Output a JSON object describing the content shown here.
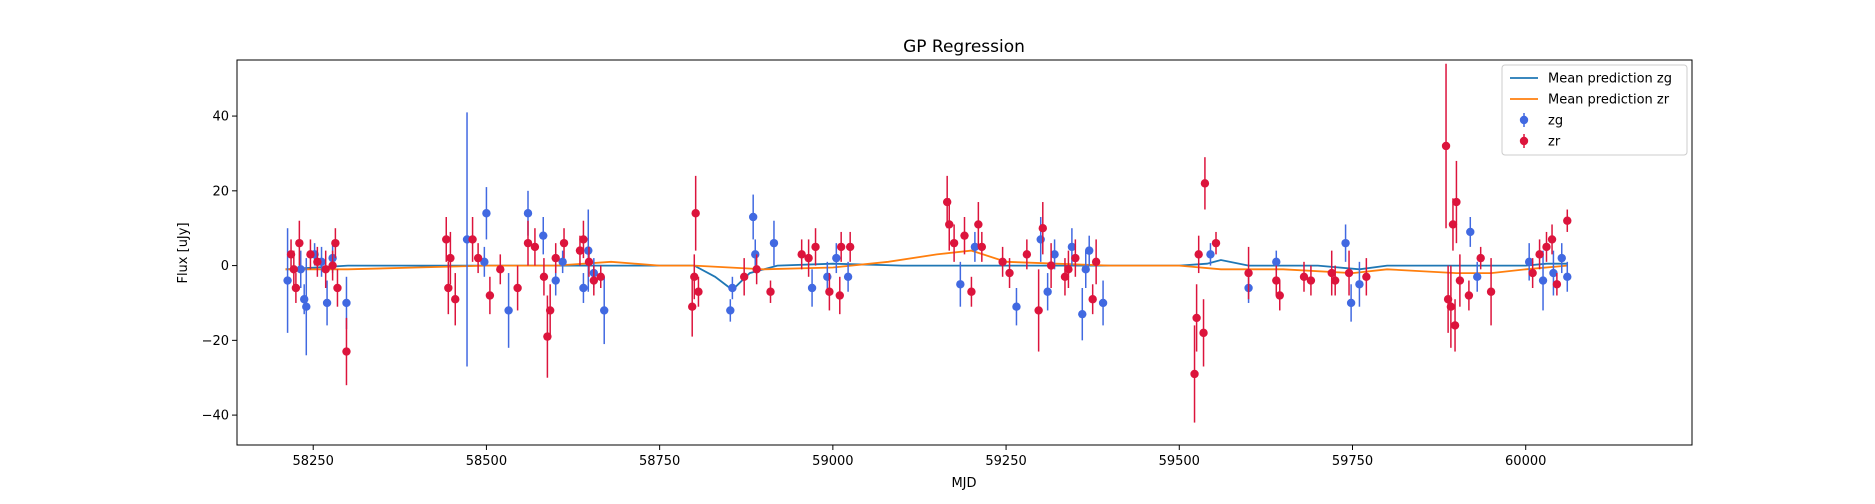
{
  "chart_data": {
    "type": "scatter",
    "title": "GP Regression",
    "xlabel": "MJD",
    "ylabel": "Flux [uJy]",
    "xlim": [
      58140,
      60240
    ],
    "ylim": [
      -48,
      55
    ],
    "xticks": [
      58250,
      58500,
      58750,
      59000,
      59250,
      59500,
      59750,
      60000
    ],
    "yticks": [
      -40,
      -20,
      0,
      20,
      40
    ],
    "grid": false,
    "legend_position": "top-right",
    "colors": {
      "zg": "#4169e1",
      "zr": "#dc143c",
      "mean_zg": "#1f77b4",
      "mean_zr": "#ff7f0e"
    },
    "series": [
      {
        "name": "Mean prediction zg",
        "kind": "line",
        "points": [
          [
            58210,
            -1
          ],
          [
            58300,
            0
          ],
          [
            58400,
            0
          ],
          [
            58500,
            0
          ],
          [
            58600,
            0
          ],
          [
            58700,
            0
          ],
          [
            58800,
            0
          ],
          [
            58830,
            -3
          ],
          [
            58855,
            -6.5
          ],
          [
            58880,
            -2
          ],
          [
            58920,
            0
          ],
          [
            59000,
            0.5
          ],
          [
            59100,
            0
          ],
          [
            59250,
            0
          ],
          [
            59400,
            0
          ],
          [
            59500,
            0
          ],
          [
            59540,
            0.5
          ],
          [
            59560,
            1.5
          ],
          [
            59600,
            0
          ],
          [
            59700,
            0
          ],
          [
            59760,
            -1
          ],
          [
            59800,
            0
          ],
          [
            59900,
            0
          ],
          [
            60000,
            0
          ],
          [
            60030,
            0.5
          ],
          [
            60060,
            0.5
          ]
        ]
      },
      {
        "name": "Mean prediction zr",
        "kind": "line",
        "points": [
          [
            58210,
            -1
          ],
          [
            58300,
            -1
          ],
          [
            58400,
            -0.5
          ],
          [
            58500,
            0
          ],
          [
            58600,
            0
          ],
          [
            58680,
            1
          ],
          [
            58750,
            0
          ],
          [
            58800,
            0
          ],
          [
            58900,
            -1
          ],
          [
            59000,
            -0.5
          ],
          [
            59080,
            1
          ],
          [
            59150,
            3
          ],
          [
            59200,
            4
          ],
          [
            59250,
            1
          ],
          [
            59400,
            0
          ],
          [
            59500,
            0
          ],
          [
            59560,
            -1
          ],
          [
            59650,
            -1
          ],
          [
            59750,
            -2
          ],
          [
            59800,
            -1
          ],
          [
            59900,
            -2
          ],
          [
            59950,
            -2
          ],
          [
            60000,
            -1
          ],
          [
            60060,
            0
          ]
        ]
      },
      {
        "name": "zg",
        "kind": "errorbar",
        "points": [
          [
            58213,
            -4,
            14
          ],
          [
            58232,
            -1,
            5
          ],
          [
            58237,
            -9,
            4
          ],
          [
            58240,
            -11,
            13
          ],
          [
            58252,
            3,
            3
          ],
          [
            58262,
            1,
            4
          ],
          [
            58270,
            -10,
            6
          ],
          [
            58278,
            2,
            4
          ],
          [
            58298,
            -10,
            7
          ],
          [
            58472,
            7,
            34
          ],
          [
            58497,
            1,
            4
          ],
          [
            58500,
            14,
            7
          ],
          [
            58532,
            -12,
            10
          ],
          [
            58560,
            14,
            6
          ],
          [
            58582,
            8,
            5
          ],
          [
            58600,
            -4,
            4
          ],
          [
            58610,
            1,
            3
          ],
          [
            58640,
            -6,
            4
          ],
          [
            58647,
            4,
            11
          ],
          [
            58655,
            -2,
            4
          ],
          [
            58670,
            -12,
            9
          ],
          [
            58852,
            -12,
            3
          ],
          [
            58855,
            -6,
            3
          ],
          [
            58885,
            13,
            6
          ],
          [
            58888,
            3,
            4
          ],
          [
            58915,
            6,
            6
          ],
          [
            58970,
            -6,
            5
          ],
          [
            58992,
            -3,
            4
          ],
          [
            59005,
            2,
            4
          ],
          [
            59022,
            -3,
            4
          ],
          [
            59184,
            -5,
            6
          ],
          [
            59205,
            5,
            4
          ],
          [
            59265,
            -11,
            5
          ],
          [
            59300,
            7,
            6
          ],
          [
            59310,
            -7,
            5
          ],
          [
            59320,
            3,
            4
          ],
          [
            59345,
            5,
            5
          ],
          [
            59360,
            -13,
            7
          ],
          [
            59365,
            -1,
            5
          ],
          [
            59370,
            4,
            4
          ],
          [
            59390,
            -10,
            6
          ],
          [
            59545,
            3,
            3
          ],
          [
            59600,
            -6,
            4
          ],
          [
            59640,
            1,
            3
          ],
          [
            59740,
            6,
            5
          ],
          [
            59748,
            -10,
            5
          ],
          [
            59760,
            -5,
            6
          ],
          [
            59920,
            9,
            4
          ],
          [
            59930,
            -3,
            4
          ],
          [
            60005,
            1,
            5
          ],
          [
            60025,
            -4,
            8
          ],
          [
            60040,
            -2,
            6
          ],
          [
            60052,
            2,
            4
          ],
          [
            60060,
            -3,
            4
          ]
        ]
      },
      {
        "name": "zr",
        "kind": "errorbar",
        "points": [
          [
            58218,
            3,
            4
          ],
          [
            58222,
            -1,
            5
          ],
          [
            58225,
            -6,
            4
          ],
          [
            58230,
            6,
            6
          ],
          [
            58246,
            3,
            4
          ],
          [
            58256,
            1,
            4
          ],
          [
            58268,
            -1,
            5
          ],
          [
            58278,
            0,
            4
          ],
          [
            58282,
            6,
            4
          ],
          [
            58285,
            -6,
            5
          ],
          [
            58298,
            -23,
            9
          ],
          [
            58442,
            7,
            6
          ],
          [
            58445,
            -6,
            7
          ],
          [
            58448,
            2,
            7
          ],
          [
            58455,
            -9,
            7
          ],
          [
            58480,
            7,
            6
          ],
          [
            58488,
            2,
            4
          ],
          [
            58505,
            -8,
            5
          ],
          [
            58520,
            -1,
            4
          ],
          [
            58545,
            -6,
            6
          ],
          [
            58560,
            6,
            6
          ],
          [
            58570,
            5,
            5
          ],
          [
            58583,
            -3,
            5
          ],
          [
            58588,
            -19,
            11
          ],
          [
            58592,
            -12,
            7
          ],
          [
            58600,
            2,
            4
          ],
          [
            58612,
            6,
            4
          ],
          [
            58635,
            4,
            4
          ],
          [
            58640,
            7,
            5
          ],
          [
            58648,
            1,
            4
          ],
          [
            58655,
            -4,
            4
          ],
          [
            58665,
            -3,
            3
          ],
          [
            58797,
            -11,
            8
          ],
          [
            58800,
            -3,
            6
          ],
          [
            58802,
            14,
            10
          ],
          [
            58806,
            -7,
            4
          ],
          [
            58872,
            -3,
            5
          ],
          [
            58890,
            -1,
            4
          ],
          [
            58910,
            -7,
            3
          ],
          [
            58955,
            3,
            4
          ],
          [
            58965,
            2,
            5
          ],
          [
            58975,
            5,
            5
          ],
          [
            58995,
            -7,
            5
          ],
          [
            59010,
            -8,
            5
          ],
          [
            59012,
            5,
            4
          ],
          [
            59025,
            5,
            4
          ],
          [
            59165,
            17,
            7
          ],
          [
            59168,
            11,
            7
          ],
          [
            59175,
            6,
            5
          ],
          [
            59190,
            8,
            5
          ],
          [
            59200,
            -7,
            4
          ],
          [
            59210,
            11,
            6
          ],
          [
            59215,
            5,
            4
          ],
          [
            59245,
            1,
            4
          ],
          [
            59255,
            -2,
            4
          ],
          [
            59280,
            3,
            4
          ],
          [
            59297,
            -12,
            11
          ],
          [
            59303,
            10,
            7
          ],
          [
            59315,
            0,
            6
          ],
          [
            59335,
            -3,
            5
          ],
          [
            59340,
            -1,
            5
          ],
          [
            59350,
            2,
            5
          ],
          [
            59375,
            -9,
            4
          ],
          [
            59380,
            1,
            6
          ],
          [
            59522,
            -29,
            13
          ],
          [
            59525,
            -14,
            9
          ],
          [
            59528,
            3,
            5
          ],
          [
            59535,
            -18,
            9
          ],
          [
            59537,
            22,
            7
          ],
          [
            59553,
            6,
            3
          ],
          [
            59600,
            -2,
            7
          ],
          [
            59640,
            -4,
            4
          ],
          [
            59645,
            -8,
            4
          ],
          [
            59680,
            -3,
            4
          ],
          [
            59690,
            -4,
            4
          ],
          [
            59720,
            -2,
            6
          ],
          [
            59725,
            -4,
            4
          ],
          [
            59745,
            -2,
            6
          ],
          [
            59770,
            -3,
            5
          ],
          [
            59885,
            32,
            22
          ],
          [
            59888,
            -9,
            9
          ],
          [
            59892,
            -11,
            11
          ],
          [
            59895,
            11,
            7
          ],
          [
            59898,
            -16,
            7
          ],
          [
            59900,
            17,
            11
          ],
          [
            59905,
            -4,
            7
          ],
          [
            59918,
            -8,
            4
          ],
          [
            59935,
            2,
            3
          ],
          [
            59950,
            -7,
            9
          ],
          [
            60010,
            -2,
            4
          ],
          [
            60020,
            3,
            4
          ],
          [
            60030,
            5,
            4
          ],
          [
            60038,
            7,
            4
          ],
          [
            60045,
            -5,
            3
          ],
          [
            60060,
            12,
            3
          ]
        ]
      }
    ]
  }
}
